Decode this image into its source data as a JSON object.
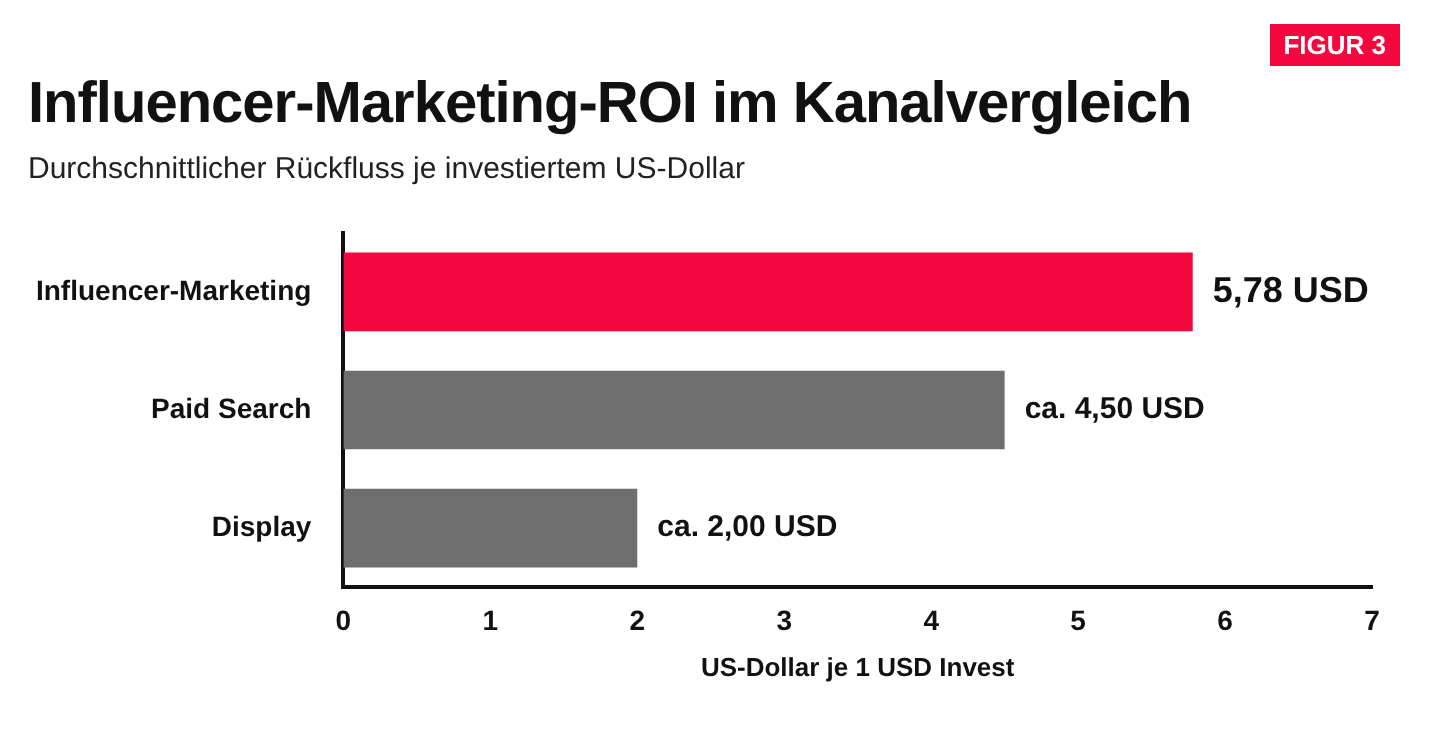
{
  "chart_data": {
    "type": "bar",
    "orientation": "horizontal",
    "title": "Influencer-Marketing-ROI im Kanalvergleich",
    "subtitle": "Durchschnittlicher Rückfluss je investiertem US-Dollar",
    "xlabel": "US-Dollar je 1 USD Invest",
    "annotations": [
      "FIGUR 3"
    ],
    "categories": [
      "Influencer-Marketing",
      "Paid Search",
      "Display"
    ],
    "values": [
      5.78,
      4.5,
      2.0
    ],
    "colors": [
      "#f5083f",
      "#6e6e6e",
      "#6e6e6e"
    ],
    "value_labels": [
      "5,78 USD",
      "ca. 4,50 USD",
      "ca. 2,00 USD"
    ],
    "xlim": [
      0,
      7
    ],
    "xticks": [
      0,
      1,
      2,
      3,
      4,
      5,
      6,
      7
    ],
    "grid": false,
    "legend": false
  }
}
